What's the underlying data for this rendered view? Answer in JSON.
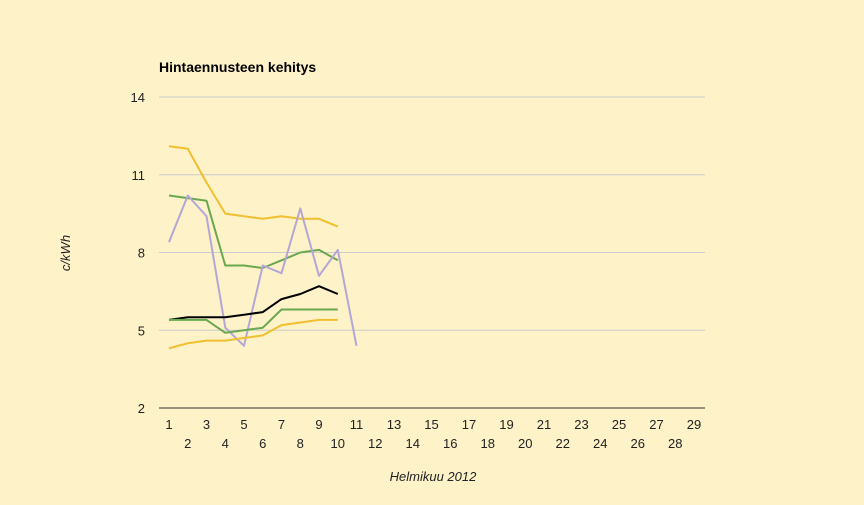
{
  "chart_data": {
    "type": "line",
    "title": "Hintaennusteen kehitys",
    "xlabel": "Helmikuu 2012",
    "ylabel": "c/kWh",
    "xlim": [
      1,
      29
    ],
    "ylim": [
      2,
      14
    ],
    "yticks": [
      2,
      5,
      8,
      11,
      14
    ],
    "xticks": [
      1,
      2,
      3,
      4,
      5,
      6,
      7,
      8,
      9,
      10,
      11,
      12,
      13,
      14,
      15,
      16,
      17,
      18,
      19,
      20,
      21,
      22,
      23,
      24,
      25,
      26,
      27,
      28,
      29
    ],
    "grid": true,
    "legend": "none",
    "colors": {
      "series_orange": "#f0c030",
      "series_green": "#6aa84f",
      "series_purple": "#b4a7d6",
      "series_black": "#000000",
      "grid": "#cccccc",
      "axis": "#333333"
    },
    "series": [
      {
        "color": "#f0c030",
        "x": [
          1,
          2,
          3,
          4,
          5,
          6,
          7,
          8,
          9,
          10
        ],
        "values": [
          12.1,
          12.0,
          10.7,
          9.5,
          9.4,
          9.3,
          9.4,
          9.3,
          9.3,
          9.0
        ]
      },
      {
        "color": "#6aa84f",
        "x": [
          1,
          2,
          3,
          4,
          5,
          6,
          7,
          8,
          9,
          10
        ],
        "values": [
          10.2,
          10.1,
          10.0,
          7.5,
          7.5,
          7.4,
          7.7,
          8.0,
          8.1,
          7.7
        ]
      },
      {
        "color": "#b4a7d6",
        "x": [
          1,
          2,
          3,
          4,
          5,
          6,
          7,
          8,
          9,
          10,
          11
        ],
        "values": [
          8.4,
          10.2,
          9.4,
          5.1,
          4.4,
          7.5,
          7.2,
          9.7,
          7.1,
          8.1,
          4.4
        ]
      },
      {
        "color": "#000000",
        "x": [
          1,
          2,
          3,
          4,
          5,
          6,
          7,
          8,
          9,
          10
        ],
        "values": [
          5.4,
          5.5,
          5.5,
          5.5,
          5.6,
          5.7,
          6.2,
          6.4,
          6.7,
          6.4
        ]
      },
      {
        "color": "#6aa84f",
        "x": [
          1,
          2,
          3,
          4,
          5,
          6,
          7,
          8,
          9,
          10
        ],
        "values": [
          5.4,
          5.4,
          5.4,
          4.9,
          5.0,
          5.1,
          5.8,
          5.8,
          5.8,
          5.8
        ]
      },
      {
        "color": "#f0c030",
        "x": [
          1,
          2,
          3,
          4,
          5,
          6,
          7,
          8,
          9,
          10
        ],
        "values": [
          4.3,
          4.5,
          4.6,
          4.6,
          4.7,
          4.8,
          5.2,
          5.3,
          5.4,
          5.4
        ]
      }
    ]
  }
}
